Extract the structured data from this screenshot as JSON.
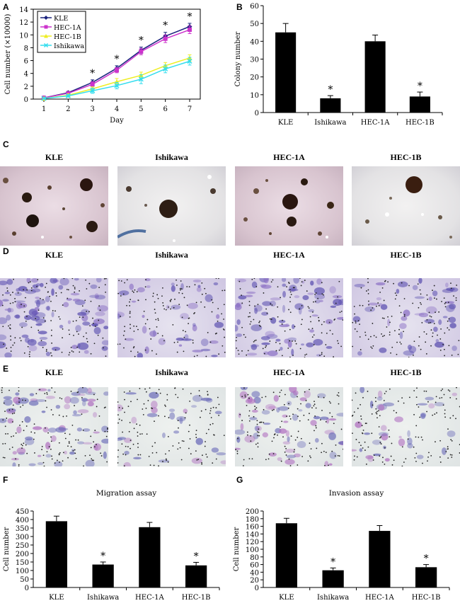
{
  "panels": {
    "A": "A",
    "B": "B",
    "C": "C",
    "D": "D",
    "E": "E",
    "F": "F",
    "G": "G"
  },
  "cell_lines": [
    "KLE",
    "Ishikawa",
    "HEC-1A",
    "HEC-1B"
  ],
  "colors": {
    "KLE": "#1a237e",
    "HEC-1A": "#cc33cc",
    "HEC-1B": "#eeee22",
    "Ishikawa": "#33ddee"
  },
  "chart_data": [
    {
      "id": "A",
      "type": "line",
      "xlabel": "Day",
      "ylabel": "Cell number (×10000)",
      "x": [
        1,
        2,
        3,
        4,
        5,
        6,
        7
      ],
      "xticks": [
        "1",
        "2",
        "3",
        "4",
        "5",
        "6",
        "7"
      ],
      "ylim": [
        0,
        14
      ],
      "yticks": [
        "0",
        "2",
        "4",
        "6",
        "8",
        "10",
        "12",
        "14"
      ],
      "legend_position": "top-left",
      "significance": [
        "",
        "",
        "*",
        "*",
        "*",
        "*",
        "*"
      ],
      "series": [
        {
          "name": "KLE",
          "values": [
            0.2,
            1.0,
            2.6,
            4.8,
            7.6,
            9.8,
            11.3
          ],
          "err": [
            0.1,
            0.2,
            0.4,
            0.4,
            0.5,
            0.6,
            0.5
          ],
          "marker": "diamond"
        },
        {
          "name": "HEC-1A",
          "values": [
            0.2,
            0.9,
            2.3,
            4.5,
            7.4,
            9.4,
            10.8
          ],
          "err": [
            0.1,
            0.2,
            0.4,
            0.4,
            0.5,
            0.6,
            0.6
          ],
          "marker": "square"
        },
        {
          "name": "HEC-1B",
          "values": [
            0.1,
            0.6,
            1.6,
            2.7,
            3.7,
            5.2,
            6.4
          ],
          "err": [
            0.1,
            0.2,
            0.3,
            0.5,
            0.5,
            0.5,
            0.5
          ],
          "marker": "triangle"
        },
        {
          "name": "Ishikawa",
          "values": [
            0.1,
            0.5,
            1.3,
            2.1,
            3.1,
            4.7,
            5.9
          ],
          "err": [
            0.1,
            0.2,
            0.4,
            0.5,
            0.7,
            0.6,
            0.6
          ],
          "marker": "x"
        }
      ]
    },
    {
      "id": "B",
      "type": "bar",
      "ylabel": "Colony number",
      "categories": [
        "KLE",
        "Ishikawa",
        "HEC-1A",
        "HEC-1B"
      ],
      "values": [
        45,
        8,
        40,
        9
      ],
      "err": [
        5,
        1.5,
        3.5,
        2.5
      ],
      "significance": [
        "",
        "*",
        "",
        "*"
      ],
      "ylim": [
        0,
        60
      ],
      "yticks": [
        "0",
        "10",
        "20",
        "30",
        "40",
        "50",
        "60"
      ]
    },
    {
      "id": "F",
      "type": "bar",
      "title": "Migration assay",
      "ylabel": "Cell number",
      "categories": [
        "KLE",
        "Ishikawa",
        "HEC-1A",
        "HEC-1B"
      ],
      "values": [
        390,
        135,
        355,
        130
      ],
      "err": [
        30,
        15,
        28,
        18
      ],
      "significance": [
        "",
        "*",
        "",
        "*"
      ],
      "ylim": [
        0,
        450
      ],
      "yticks": [
        "0",
        "50",
        "100",
        "150",
        "200",
        "250",
        "300",
        "350",
        "400",
        "450"
      ]
    },
    {
      "id": "G",
      "type": "bar",
      "title": "Invasion assay",
      "ylabel": "Cell number",
      "categories": [
        "KLE",
        "Ishikawa",
        "HEC-1A",
        "HEC-1B"
      ],
      "values": [
        168,
        45,
        148,
        53
      ],
      "err": [
        13,
        6,
        14,
        7
      ],
      "significance": [
        "",
        "*",
        "",
        "*"
      ],
      "ylim": [
        0,
        200
      ],
      "yticks": [
        "0",
        "20",
        "40",
        "60",
        "80",
        "100",
        "120",
        "140",
        "160",
        "180",
        "200"
      ]
    }
  ]
}
